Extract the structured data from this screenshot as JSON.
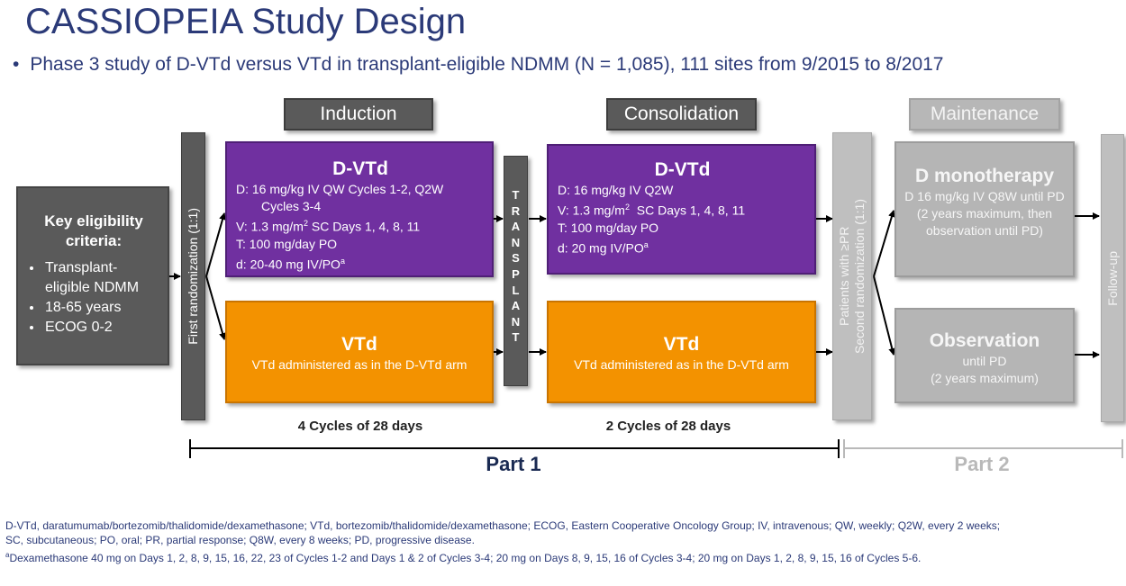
{
  "title": "CASSIOPEIA Study Design",
  "subtitle": {
    "bullet": "•",
    "text": "Phase 3 study of D-VTd versus VTd in transplant-eligible NDMM (N = 1,085), 111 sites from 9/2015 to 8/2017"
  },
  "phases": {
    "induction": "Induction",
    "consolidation": "Consolidation",
    "maintenance": "Maintenance"
  },
  "eligibility": {
    "heading": "Key eligibility criteria:",
    "items": [
      "Transplant-eligible NDMM",
      "18-65 years",
      "ECOG 0-2"
    ]
  },
  "first_randomization": "First randomization (1:1)",
  "induction_dvtd": {
    "name": "D-VTd",
    "d_line1": "D: 16 mg/kg IV QW Cycles 1-2, Q2W",
    "d_line2": "Cycles 3-4",
    "v_prefix": "V: 1.3 mg/m",
    "v_sup": "2",
    "v_suffix": " SC Days 1, 4, 8, 11",
    "t": "T: 100 mg/day PO",
    "d_dex": "d: 20-40 mg IV/PO",
    "d_dex_sup": "a"
  },
  "induction_vtd": {
    "name": "VTd",
    "desc": "VTd administered as in the D-VTd arm"
  },
  "transplant_letters": [
    "T",
    "R",
    "A",
    "N",
    "S",
    "P",
    "L",
    "A",
    "N",
    "T"
  ],
  "consolidation_dvtd": {
    "name": "D-VTd",
    "d_line": "D: 16 mg/kg IV Q2W",
    "v_prefix": "V: 1.3 mg/m",
    "v_sup": "2",
    "v_suffix": "  SC Days 1, 4, 8, 11",
    "t": "T: 100 mg/day PO",
    "d_dex": "d: 20 mg IV/PO",
    "d_dex_sup": "a"
  },
  "consolidation_vtd": {
    "name": "VTd",
    "desc": "VTd administered as in the D-VTd arm"
  },
  "second_randomization": {
    "line1": "Patients with ≥PR",
    "line2": "Second randomization (1:1)"
  },
  "maintenance_d": {
    "name": "D monotherapy",
    "desc": "D 16 mg/kg IV Q8W until PD (2 years maximum, then observation until PD)"
  },
  "maintenance_obs": {
    "name": "Observation",
    "line1": "until PD",
    "line2": "(2 years maximum)"
  },
  "follow_up": "Follow-up",
  "cycles": {
    "induction": "4 Cycles of 28 days",
    "consolidation": "2 Cycles of 28 days"
  },
  "parts": {
    "part1": "Part 1",
    "part2": "Part 2"
  },
  "footnotes": {
    "line1": "D-VTd, daratumumab/bortezomib/thalidomide/dexamethasone; VTd, bortezomib/thalidomide/dexamethasone; ECOG, Eastern Cooperative Oncology Group; IV, intravenous; QW, weekly; Q2W, every 2 weeks;",
    "line2": "SC, subcutaneous; PO, oral; PR, partial response; Q8W, every 8 weeks; PD, progressive disease.",
    "line3_sup": "a",
    "line3": "Dexamethasone 40 mg on Days 1, 2, 8, 9, 15, 16, 22, 23 of Cycles 1-2 and Days 1 & 2 of Cycles 3-4; 20 mg on Days 8, 9, 15, 16 of Cycles 3-4; 20 mg on Days 1, 2, 8, 9, 15, 16 of Cycles 5-6."
  },
  "colors": {
    "title": "#2b3a78",
    "purple": "#7030a0",
    "orange": "#f39200",
    "dark_grey": "#5a5a5a",
    "light_grey": "#b5b5b5"
  }
}
